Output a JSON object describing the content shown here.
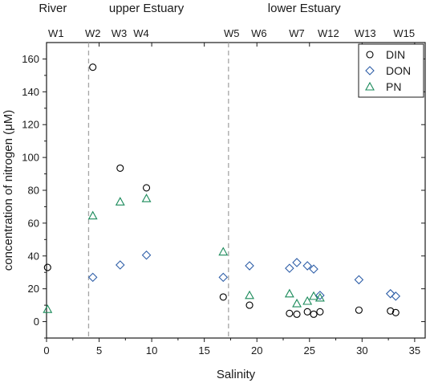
{
  "chart_data": {
    "type": "scatter",
    "xlabel": "Salinity",
    "ylabel": "concentration of nitrogen (μM)",
    "xlim": [
      0,
      36
    ],
    "ylim": [
      -10,
      170
    ],
    "xticks": [
      0,
      5,
      10,
      15,
      20,
      25,
      30,
      35
    ],
    "yticks": [
      0,
      20,
      40,
      60,
      80,
      100,
      120,
      140,
      160
    ],
    "grid": false,
    "legend_position": "top-right",
    "zones": [
      {
        "label": "River",
        "x": 0.6
      },
      {
        "label": "upper Estuary",
        "x": 9.5
      },
      {
        "label": "lower Estuary",
        "x": 24.5
      }
    ],
    "zone_boundaries": [
      4.0,
      17.3
    ],
    "stations": [
      {
        "label": "W1",
        "x": 0.9
      },
      {
        "label": "W2",
        "x": 4.4
      },
      {
        "label": "W3",
        "x": 6.9
      },
      {
        "label": "W4",
        "x": 9.0
      },
      {
        "label": "W5",
        "x": 17.6
      },
      {
        "label": "W6",
        "x": 20.2
      },
      {
        "label": "W7",
        "x": 23.8
      },
      {
        "label": "W12",
        "x": 26.8
      },
      {
        "label": "W13",
        "x": 30.3
      },
      {
        "label": "W15",
        "x": 34.0
      }
    ],
    "series": [
      {
        "name": "DIN",
        "marker": "circle",
        "color": "#000000",
        "points": [
          [
            0.1,
            33
          ],
          [
            4.4,
            155
          ],
          [
            7.0,
            93.5
          ],
          [
            9.5,
            81.5
          ],
          [
            16.8,
            15
          ],
          [
            19.3,
            10
          ],
          [
            23.1,
            5
          ],
          [
            23.8,
            4.5
          ],
          [
            24.8,
            6
          ],
          [
            25.4,
            4.5
          ],
          [
            26.0,
            6
          ],
          [
            29.7,
            7
          ],
          [
            32.7,
            6.5
          ],
          [
            33.2,
            5.5
          ]
        ]
      },
      {
        "name": "DON",
        "marker": "diamond",
        "color": "#2f5fa8",
        "points": [
          [
            4.4,
            27
          ],
          [
            7.0,
            34.5
          ],
          [
            9.5,
            40.5
          ],
          [
            16.8,
            27
          ],
          [
            19.3,
            34
          ],
          [
            23.1,
            32.5
          ],
          [
            23.8,
            36
          ],
          [
            24.8,
            34
          ],
          [
            25.4,
            32
          ],
          [
            26.0,
            16
          ],
          [
            29.7,
            25.5
          ],
          [
            32.7,
            17
          ],
          [
            33.2,
            15.5
          ]
        ]
      },
      {
        "name": "PN",
        "marker": "triangle",
        "color": "#1a8a5a",
        "points": [
          [
            0.1,
            7.5
          ],
          [
            4.4,
            64.5
          ],
          [
            7.0,
            73
          ],
          [
            9.5,
            75
          ],
          [
            16.8,
            42.5
          ],
          [
            19.3,
            16
          ],
          [
            23.1,
            17
          ],
          [
            23.8,
            11
          ],
          [
            24.8,
            12.5
          ],
          [
            25.4,
            15.5
          ],
          [
            26.0,
            14.5
          ]
        ]
      }
    ]
  }
}
